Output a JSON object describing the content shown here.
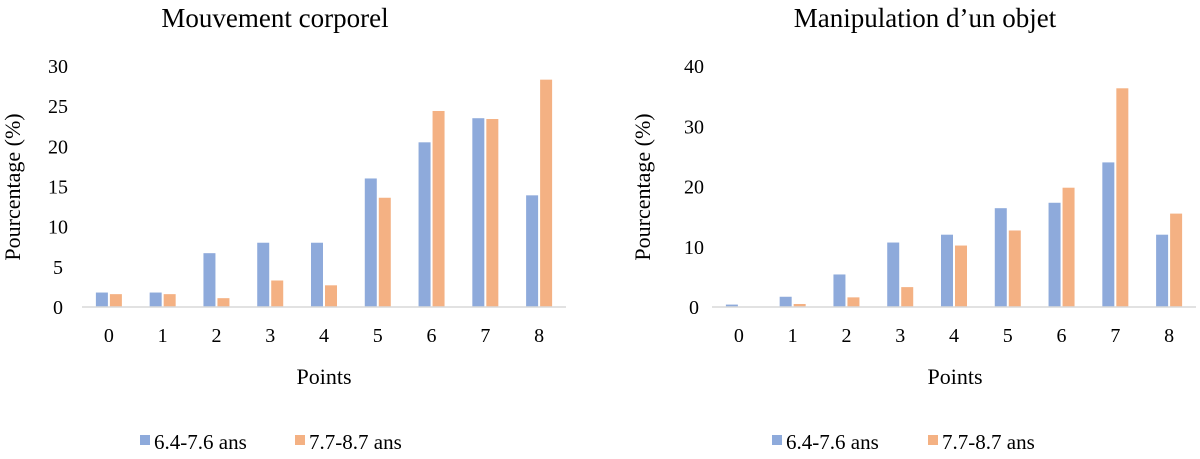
{
  "chart_data": [
    {
      "type": "bar",
      "title": "Mouvement corporel",
      "xlabel": "Points",
      "ylabel": "Pourcentage (%)",
      "categories": [
        "0",
        "1",
        "2",
        "3",
        "4",
        "5",
        "6",
        "7",
        "8"
      ],
      "ylim": [
        0,
        30
      ],
      "yticks": [
        "0",
        "5",
        "10",
        "15",
        "20",
        "25",
        "30"
      ],
      "grid": false,
      "legend_position": "bottom",
      "series": [
        {
          "name": "6.4-7.6 ans",
          "color": "#8eaadb",
          "values": [
            1.8,
            1.8,
            6.7,
            8.0,
            8.0,
            16.0,
            20.5,
            23.5,
            13.9
          ]
        },
        {
          "name": "7.7-8.7 ans",
          "color": "#f4b183",
          "values": [
            1.6,
            1.6,
            1.1,
            3.3,
            2.7,
            13.6,
            24.4,
            23.4,
            28.3
          ]
        }
      ]
    },
    {
      "type": "bar",
      "title": "Manipulation d’un objet",
      "xlabel": "Points",
      "ylabel": "Pourcentage (%)",
      "categories": [
        "0",
        "1",
        "2",
        "3",
        "4",
        "5",
        "6",
        "7",
        "8"
      ],
      "ylim": [
        0,
        40
      ],
      "yticks": [
        "0",
        "10",
        "20",
        "30",
        "40"
      ],
      "grid": false,
      "legend_position": "bottom",
      "series": [
        {
          "name": "6.4-7.6 ans",
          "color": "#8eaadb",
          "values": [
            0.4,
            1.7,
            5.4,
            10.7,
            12.0,
            16.4,
            17.3,
            24.0,
            12.0
          ]
        },
        {
          "name": "7.7-8.7 ans",
          "color": "#f4b183",
          "values": [
            0.0,
            0.5,
            1.6,
            3.3,
            10.2,
            12.7,
            19.8,
            36.3,
            15.5
          ]
        }
      ]
    }
  ]
}
